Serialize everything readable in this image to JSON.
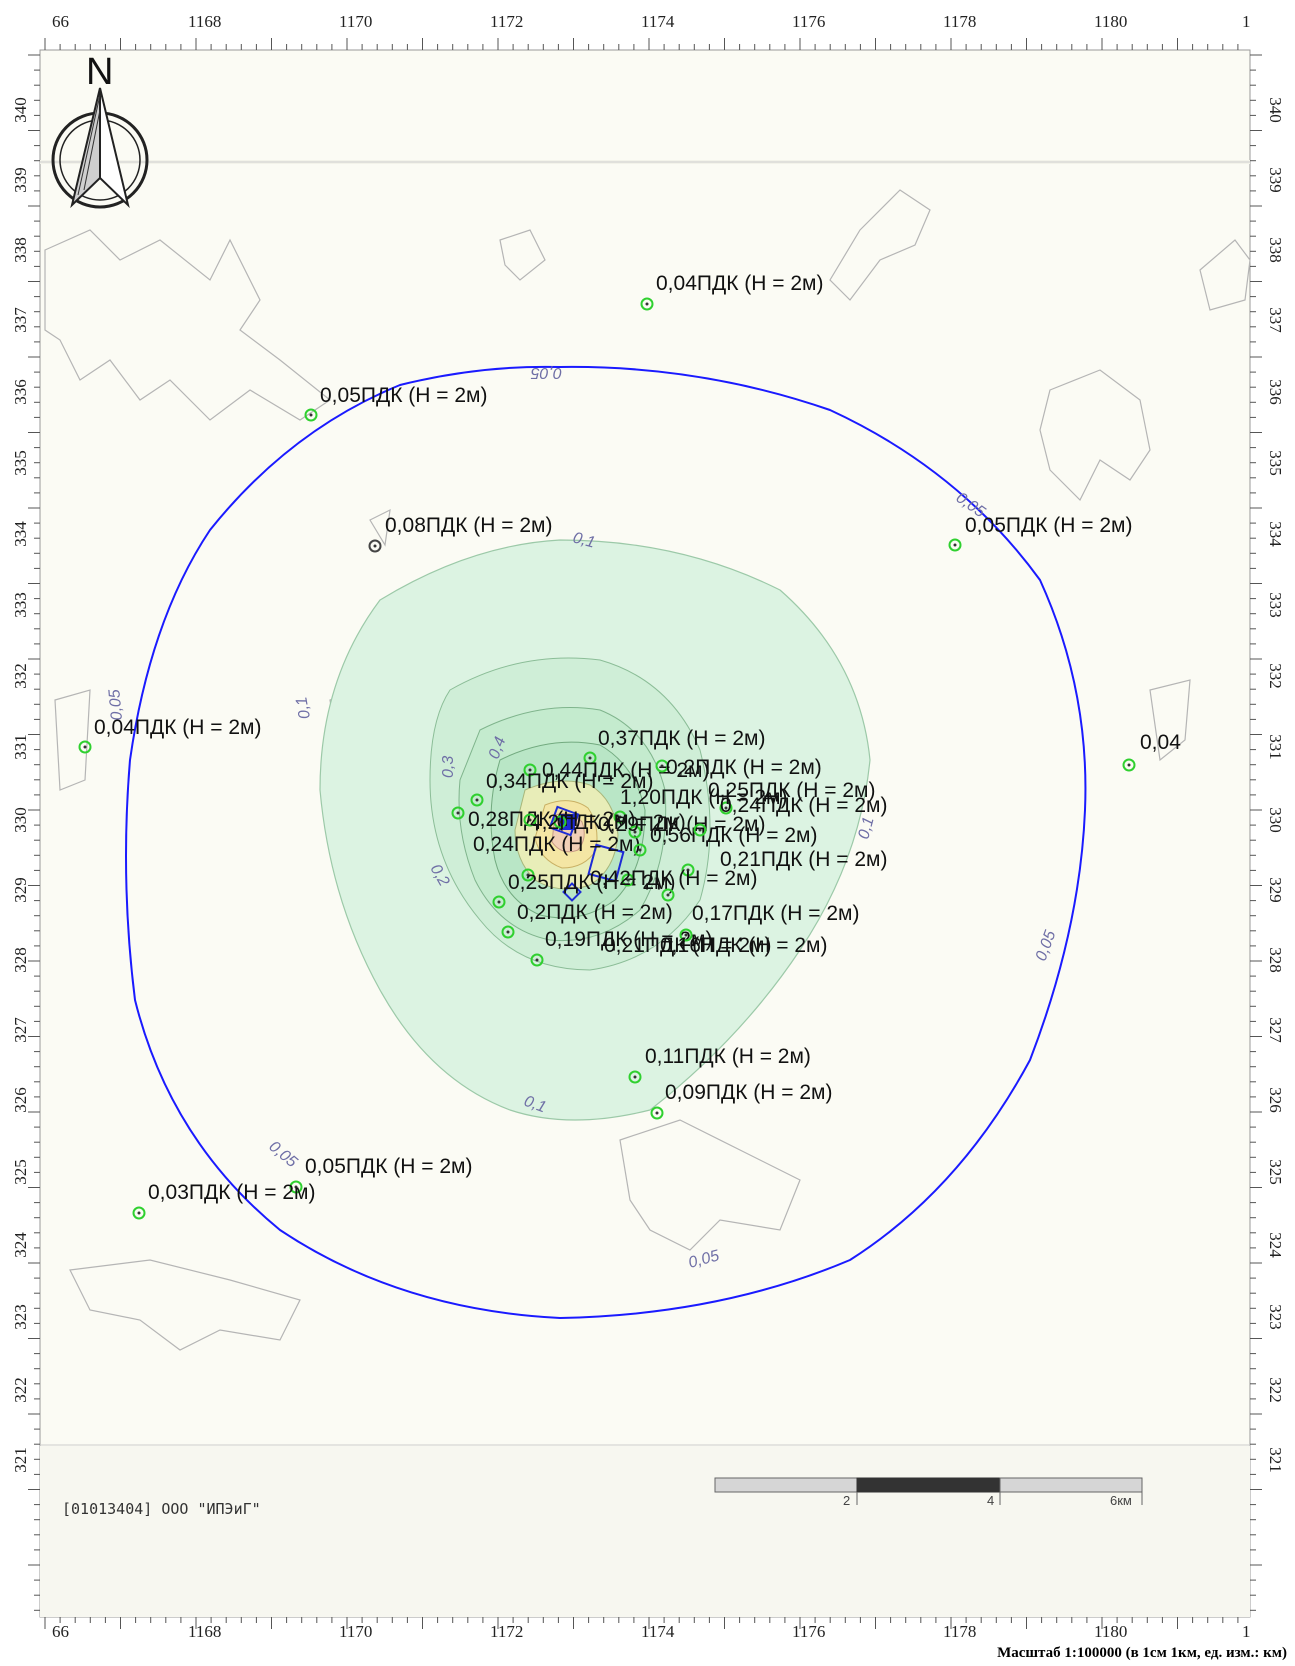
{
  "x_axis_labels": [
    "66",
    "1168",
    "1170",
    "1172",
    "1174",
    "1176",
    "1178",
    "1180",
    "1"
  ],
  "y_axis_labels": [
    "340",
    "339",
    "338",
    "337",
    "336",
    "335",
    "334",
    "333",
    "332",
    "331",
    "330",
    "329",
    "328",
    "327",
    "326",
    "325",
    "324",
    "323",
    "322",
    "321"
  ],
  "north_label": "N",
  "isolines": {
    "outer_label": "0,05",
    "inner_label": "0,1",
    "mid_labels": [
      "0,3",
      "0,2",
      "0,4"
    ],
    "colors": {
      "outer": "#1a1aff",
      "inner_fill": "#c9f1d9",
      "core": "#f6e7a0"
    }
  },
  "receptors": [
    {
      "label": "0,04ПДК (Н = 2м)"
    },
    {
      "label": "0,05ПДК (Н = 2м)"
    },
    {
      "label": "0,08ПДК (Н = 2м)"
    },
    {
      "label": "0,05ПДК (Н = 2м)"
    },
    {
      "label": "0,04ПДК (Н = 2м)"
    },
    {
      "label": "0,04"
    },
    {
      "label": "0,37ПДК (Н = 2м)"
    },
    {
      "label": "0,44ПДК (Н = 2м)"
    },
    {
      "label": "0,2ПДК (Н = 2м)"
    },
    {
      "label": "0,34ПДК (Н = 2м)"
    },
    {
      "label": "0,25ПДК (Н = 2м)"
    },
    {
      "label": "1,20ПДК (Н = 2м)"
    },
    {
      "label": "0,28ПДК (Н = 2м)"
    },
    {
      "label": "0,24ПДК (Н = 2м)"
    },
    {
      "label": "4,2ПДК (Н = 2м)"
    },
    {
      "label": "0,29ПДК (Н = 2м)"
    },
    {
      "label": "0,56ПДК (Н = 2м)"
    },
    {
      "label": "0,24ПДК (Н = 2м)"
    },
    {
      "label": "0,21ПДК (Н = 2м)"
    },
    {
      "label": "0,25ПДК (Н = 2м)"
    },
    {
      "label": "0,42ПДК (Н = 2м)"
    },
    {
      "label": "0,2ПДК (Н = 2м)"
    },
    {
      "label": "0,17ПДК (Н = 2м)"
    },
    {
      "label": "0,19ПДК (Н = 2м)"
    },
    {
      "label": "0,21ПДК (Н = 2м)"
    },
    {
      "label": "0,16ПДК (Н = 2м)"
    },
    {
      "label": "0,11ПДК (Н = 2м)"
    },
    {
      "label": "0,09ПДК (Н = 2м)"
    },
    {
      "label": "0,05ПДК (Н = 2м)"
    },
    {
      "label": "0,03ПДК (Н = 2м)"
    }
  ],
  "scale_bar": {
    "labels": [
      "2",
      "4",
      "6км"
    ]
  },
  "company_label": "[01013404] ООО \"ИПЭиГ\"",
  "scale_note": "Масштаб 1:100000 (в 1см 1км, ед. изм.: км)"
}
